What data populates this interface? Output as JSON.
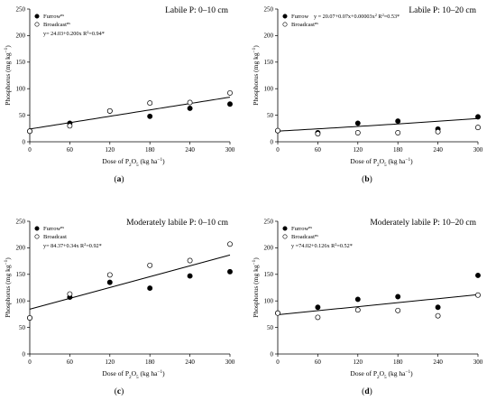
{
  "panels": [
    {
      "label": "(a)",
      "label_bold": "a",
      "title": "Labile P: 0–10 cm",
      "furrow_label": "Furrow",
      "furrow_sup": "ns",
      "broadcast_label": "Broadcast",
      "broadcast_sup": "ns",
      "equation": "y= 24.03+0.200x R",
      "equation_tail": "=0.94*",
      "equation_place": "left",
      "ylabel": "Phosphorus (mg kg",
      "ylabel_tail": ")",
      "xlabel": "Dose of P",
      "xlabel_mid": "O",
      "xlabel_tail": " (kg ha",
      "xlabel_end": ")"
    },
    {
      "label": "(b)",
      "label_bold": "b",
      "title": "Labile P: 10–20 cm",
      "furrow_label": "Furrow",
      "furrow_sup": "",
      "broadcast_label": "Broadcast",
      "broadcast_sup": "ns",
      "equation": "y = 20.07+0.07x+0.00003x",
      "equation_tail": " R",
      "equation_end": "=0.53*",
      "equation_place": "inline",
      "ylabel": "Phosphorus (mg kg",
      "ylabel_tail": ")",
      "xlabel": "Dose of P",
      "xlabel_mid": "O",
      "xlabel_tail": " (kg ha",
      "xlabel_end": ")"
    },
    {
      "label": "(c)",
      "label_bold": "c",
      "title": "Moderately labile P: 0–10 cm",
      "furrow_label": "Furrow",
      "furrow_sup": "ns",
      "broadcast_label": "Broadcast",
      "broadcast_sup": "",
      "equation": "y= 84.37+0.34x R",
      "equation_tail": "=0.92*",
      "equation_place": "left",
      "ylabel": "Phosphorus (mg kg",
      "ylabel_tail": ")",
      "xlabel": "Dose of P",
      "xlabel_mid": "O",
      "xlabel_tail": " (kg ha",
      "xlabel_end": ")"
    },
    {
      "label": "(d)",
      "label_bold": "d",
      "title": "Moderately labile P: 10–20 cm",
      "furrow_label": "Furrow",
      "furrow_sup": "ns",
      "broadcast_label": "Broadcast",
      "broadcast_sup": "ns",
      "equation": "y =74.02+0.126x R",
      "equation_tail": "=0.52*",
      "equation_place": "left",
      "ylabel": "Phosphorus (mg kg",
      "ylabel_tail": ")",
      "xlabel": "Dose of P",
      "xlabel_mid": "O",
      "xlabel_tail": " (kg ha",
      "xlabel_end": ")"
    }
  ],
  "chart_data": [
    {
      "type": "scatter",
      "title": "Labile P: 0–10 cm",
      "x_ticks": [
        0,
        60,
        120,
        180,
        240,
        300
      ],
      "y_ticks": [
        0,
        50,
        100,
        150,
        200,
        250
      ],
      "xlim": [
        0,
        300
      ],
      "ylim": [
        0,
        250
      ],
      "series": [
        {
          "name": "Furrow",
          "marker": "filled",
          "x": [
            0,
            60,
            120,
            180,
            240,
            300
          ],
          "y": [
            20,
            35,
            58,
            48,
            63,
            71
          ]
        },
        {
          "name": "Broadcast",
          "marker": "open",
          "x": [
            0,
            60,
            120,
            180,
            240,
            300
          ],
          "y": [
            20,
            30,
            58,
            73,
            74,
            92
          ]
        }
      ],
      "fit": {
        "type": "linear",
        "intercept": 24.03,
        "slope": 0.2
      }
    },
    {
      "type": "scatter",
      "title": "Labile P: 10–20 cm",
      "x_ticks": [
        0,
        60,
        120,
        180,
        240,
        300
      ],
      "y_ticks": [
        0,
        50,
        100,
        150,
        200,
        250
      ],
      "xlim": [
        0,
        300
      ],
      "ylim": [
        0,
        250
      ],
      "series": [
        {
          "name": "Furrow",
          "marker": "filled",
          "x": [
            0,
            60,
            120,
            180,
            240,
            300
          ],
          "y": [
            21,
            17,
            35,
            39,
            24,
            47
          ]
        },
        {
          "name": "Broadcast",
          "marker": "open",
          "x": [
            0,
            60,
            120,
            180,
            240,
            300
          ],
          "y": [
            21,
            15,
            17,
            17,
            19,
            27
          ]
        }
      ],
      "fit": {
        "type": "quadratic",
        "intercept": 20.07,
        "b1": 0.07,
        "b2": 3e-05
      }
    },
    {
      "type": "scatter",
      "title": "Moderately labile P: 0–10 cm",
      "x_ticks": [
        0,
        60,
        120,
        180,
        240,
        300
      ],
      "y_ticks": [
        0,
        50,
        100,
        150,
        200,
        250
      ],
      "xlim": [
        0,
        300
      ],
      "ylim": [
        0,
        250
      ],
      "series": [
        {
          "name": "Furrow",
          "marker": "filled",
          "x": [
            0,
            60,
            120,
            180,
            240,
            300
          ],
          "y": [
            68,
            107,
            135,
            124,
            147,
            155
          ]
        },
        {
          "name": "Broadcast",
          "marker": "open",
          "x": [
            0,
            60,
            120,
            180,
            240,
            300
          ],
          "y": [
            68,
            113,
            149,
            167,
            176,
            207
          ]
        }
      ],
      "fit": {
        "type": "linear",
        "intercept": 84.37,
        "slope": 0.34
      }
    },
    {
      "type": "scatter",
      "title": "Moderately labile P: 10–20 cm",
      "x_ticks": [
        0,
        60,
        120,
        180,
        240,
        300
      ],
      "y_ticks": [
        0,
        50,
        100,
        150,
        200,
        250
      ],
      "xlim": [
        0,
        300
      ],
      "ylim": [
        0,
        250
      ],
      "series": [
        {
          "name": "Furrow",
          "marker": "filled",
          "x": [
            0,
            60,
            120,
            180,
            240,
            300
          ],
          "y": [
            77,
            88,
            103,
            108,
            88,
            148
          ]
        },
        {
          "name": "Broadcast",
          "marker": "open",
          "x": [
            0,
            60,
            120,
            180,
            240,
            300
          ],
          "y": [
            77,
            69,
            83,
            82,
            72,
            111
          ]
        }
      ],
      "fit": {
        "type": "linear",
        "intercept": 74.02,
        "slope": 0.126
      }
    }
  ]
}
